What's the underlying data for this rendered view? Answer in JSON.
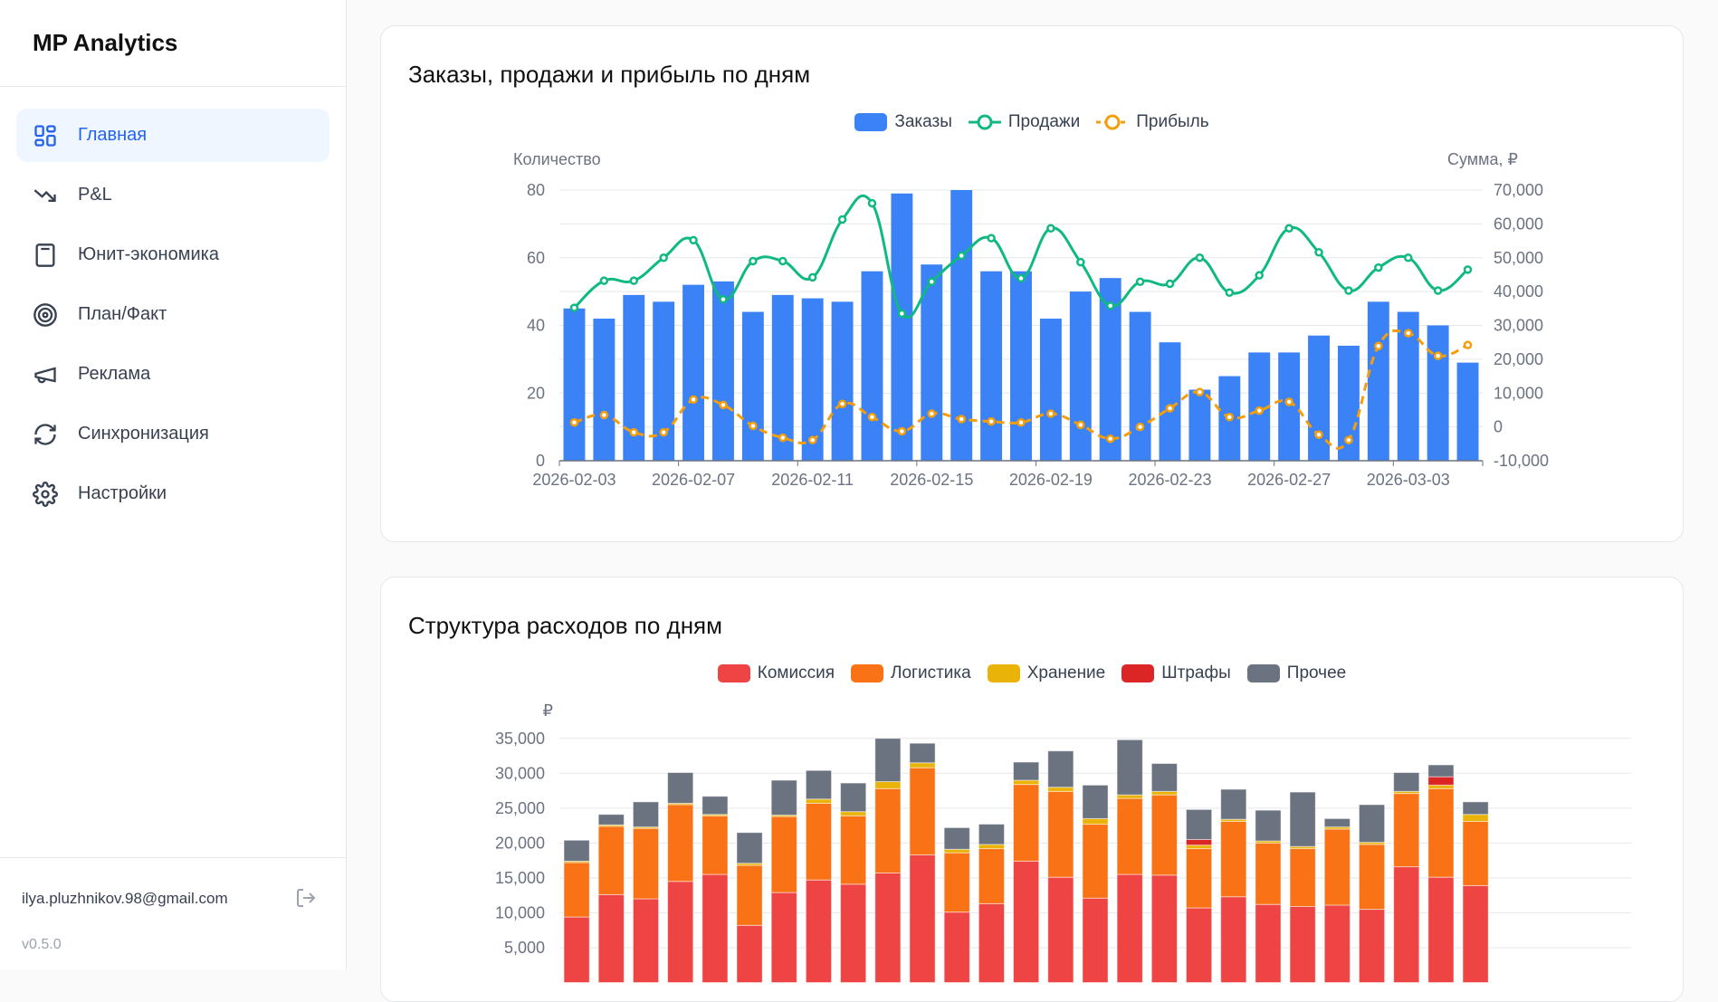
{
  "sidebar": {
    "brand": "MP Analytics",
    "items": [
      {
        "label": "Главная",
        "icon": "dashboard-grid-icon",
        "active": true
      },
      {
        "label": "P&L",
        "icon": "trending-down-icon"
      },
      {
        "label": "Юнит-экономика",
        "icon": "calculator-icon"
      },
      {
        "label": "План/Факт",
        "icon": "target-icon"
      },
      {
        "label": "Реклама",
        "icon": "megaphone-icon"
      },
      {
        "label": "Синхронизация",
        "icon": "refresh-icon"
      },
      {
        "label": "Настройки",
        "icon": "gear-icon"
      }
    ],
    "email": "ilya.pluzhnikov.98@gmail.com",
    "logout_icon": "logout-icon",
    "version": "v0.5.0"
  },
  "colors": {
    "orders": "#3b82f6",
    "sales": "#10b981",
    "profit": "#f59e0b",
    "commission": "#ef4444",
    "logistics": "#f97316",
    "storage": "#eab308",
    "fines": "#dc2626",
    "other": "#6b7280",
    "accent": "#2563eb"
  },
  "chart_data": [
    {
      "type": "bar+line",
      "title": "Заказы, продажи и прибыль по дням",
      "legend": [
        "Заказы",
        "Продажи",
        "Прибыль"
      ],
      "legend_position": "top",
      "ylabel": "Количество",
      "y2label": "Сумма, ₽",
      "ylim": [
        0,
        80
      ],
      "y2lim": [
        -10000,
        70000
      ],
      "yticks": [
        "0",
        "20",
        "40",
        "60",
        "80"
      ],
      "y2ticks": [
        "-10,000",
        "0",
        "10,000",
        "20,000",
        "30,000",
        "40,000",
        "50,000",
        "60,000",
        "70,000"
      ],
      "xtick_labels": [
        "2026-02-03",
        "2026-02-07",
        "2026-02-11",
        "2026-02-15",
        "2026-02-19",
        "2026-02-23",
        "2026-02-27",
        "2026-03-03"
      ],
      "x": [
        "2026-02-03",
        "2026-02-04",
        "2026-02-05",
        "2026-02-06",
        "2026-02-07",
        "2026-02-08",
        "2026-02-09",
        "2026-02-10",
        "2026-02-11",
        "2026-02-12",
        "2026-02-13",
        "2026-02-14",
        "2026-02-15",
        "2026-02-16",
        "2026-02-17",
        "2026-02-18",
        "2026-02-19",
        "2026-02-20",
        "2026-02-21",
        "2026-02-22",
        "2026-02-23",
        "2026-02-24",
        "2026-02-25",
        "2026-02-26",
        "2026-02-27",
        "2026-02-28",
        "2026-03-01",
        "2026-03-02",
        "2026-03-03",
        "2026-03-04",
        "2026-03-05"
      ],
      "grid": true,
      "series": [
        {
          "name": "Заказы",
          "type": "bar",
          "axis": "left",
          "values": [
            45,
            42,
            49,
            47,
            52,
            53,
            44,
            49,
            48,
            47,
            56,
            79,
            58,
            80,
            56,
            56,
            42,
            50,
            54,
            44,
            35,
            21,
            25,
            32,
            32,
            37,
            34,
            47,
            44,
            40,
            29
          ]
        },
        {
          "name": "Продажи",
          "type": "line",
          "axis": "right",
          "values": [
            35200,
            43200,
            43200,
            50000,
            55200,
            37700,
            49000,
            49000,
            44200,
            61300,
            66100,
            33500,
            42900,
            50600,
            55800,
            43900,
            58700,
            48700,
            35800,
            42900,
            42300,
            50000,
            39700,
            44800,
            58700,
            51600,
            40300,
            47100,
            50000,
            40300,
            46500
          ]
        },
        {
          "name": "Прибыль",
          "type": "line",
          "dashed": true,
          "axis": "right",
          "values": [
            1300,
            3500,
            -1600,
            -1600,
            8100,
            6500,
            300,
            -3200,
            -3900,
            6800,
            2900,
            -1300,
            3900,
            2300,
            1600,
            1300,
            3900,
            600,
            -3500,
            0,
            5500,
            10300,
            2900,
            4800,
            7400,
            -2300,
            -3900,
            23900,
            27700,
            21000,
            24200
          ]
        }
      ]
    },
    {
      "type": "stacked-bar",
      "title": "Структура расходов по дням",
      "legend": [
        "Комиссия",
        "Логистика",
        "Хранение",
        "Штрафы",
        "Прочее"
      ],
      "legend_position": "top",
      "ylabel": "₽",
      "yticks": [
        "5,000",
        "10,000",
        "15,000",
        "20,000",
        "25,000",
        "30,000",
        "35,000"
      ],
      "grid": true,
      "series": [
        {
          "name": "Комиссия",
          "values": [
            9400,
            12600,
            12000,
            14500,
            15500,
            8200,
            12900,
            14700,
            14100,
            15700,
            18300,
            10100,
            11300,
            17400,
            15100,
            12100,
            15500,
            15400,
            10700,
            12300,
            11200,
            10900,
            11100,
            10500,
            16600,
            15100,
            13900
          ]
        },
        {
          "name": "Логистика",
          "values": [
            7800,
            9800,
            10100,
            11000,
            8400,
            8600,
            10900,
            11000,
            9800,
            12100,
            12500,
            8500,
            7900,
            11000,
            12300,
            10600,
            10900,
            11500,
            8500,
            10800,
            8800,
            8300,
            10900,
            9300,
            10500,
            12700,
            9200
          ]
        },
        {
          "name": "Хранение",
          "values": [
            200,
            200,
            200,
            200,
            200,
            300,
            200,
            600,
            600,
            1000,
            700,
            500,
            600,
            600,
            600,
            800,
            500,
            500,
            500,
            300,
            300,
            300,
            300,
            300,
            300,
            500,
            1000
          ]
        },
        {
          "name": "Штрафы",
          "values": [
            0,
            0,
            0,
            0,
            0,
            0,
            0,
            0,
            0,
            0,
            0,
            0,
            0,
            0,
            0,
            0,
            0,
            0,
            800,
            0,
            0,
            0,
            0,
            0,
            0,
            1200,
            0
          ]
        },
        {
          "name": "Прочее",
          "values": [
            3000,
            1500,
            3600,
            4400,
            2600,
            4400,
            5000,
            4100,
            4100,
            6200,
            2800,
            3100,
            2900,
            2600,
            5200,
            4800,
            7900,
            4000,
            4300,
            4300,
            4400,
            7800,
            1200,
            5400,
            2700,
            1700,
            1800
          ]
        }
      ]
    }
  ]
}
